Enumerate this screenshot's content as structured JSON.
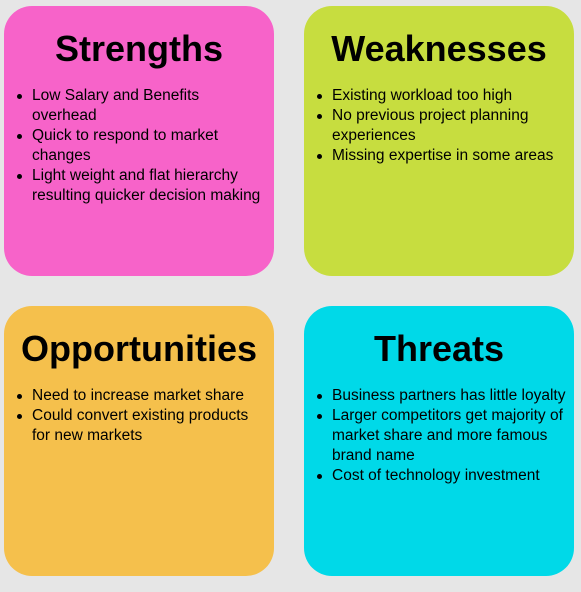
{
  "quadrants": [
    {
      "title": "Strengths",
      "color": "#f763c9",
      "items": [
        "Low Salary and Benefits overhead",
        "Quick to respond to market changes",
        "Light weight and flat hierarchy resulting quicker decision making"
      ]
    },
    {
      "title": "Weaknesses",
      "color": "#c7dd3f",
      "items": [
        "Existing workload too high",
        "No previous project planning experiences",
        "Missing expertise in some areas"
      ]
    },
    {
      "title": "Opportunities",
      "color": "#f5c04c",
      "items": [
        "Need to increase market share",
        "Could convert existing products for new markets"
      ]
    },
    {
      "title": "Threats",
      "color": "#00d9e8",
      "items": [
        "Business partners has little loyalty",
        "Larger competitors get majority of market share and more famous brand name",
        "Cost of technology investment"
      ]
    }
  ]
}
